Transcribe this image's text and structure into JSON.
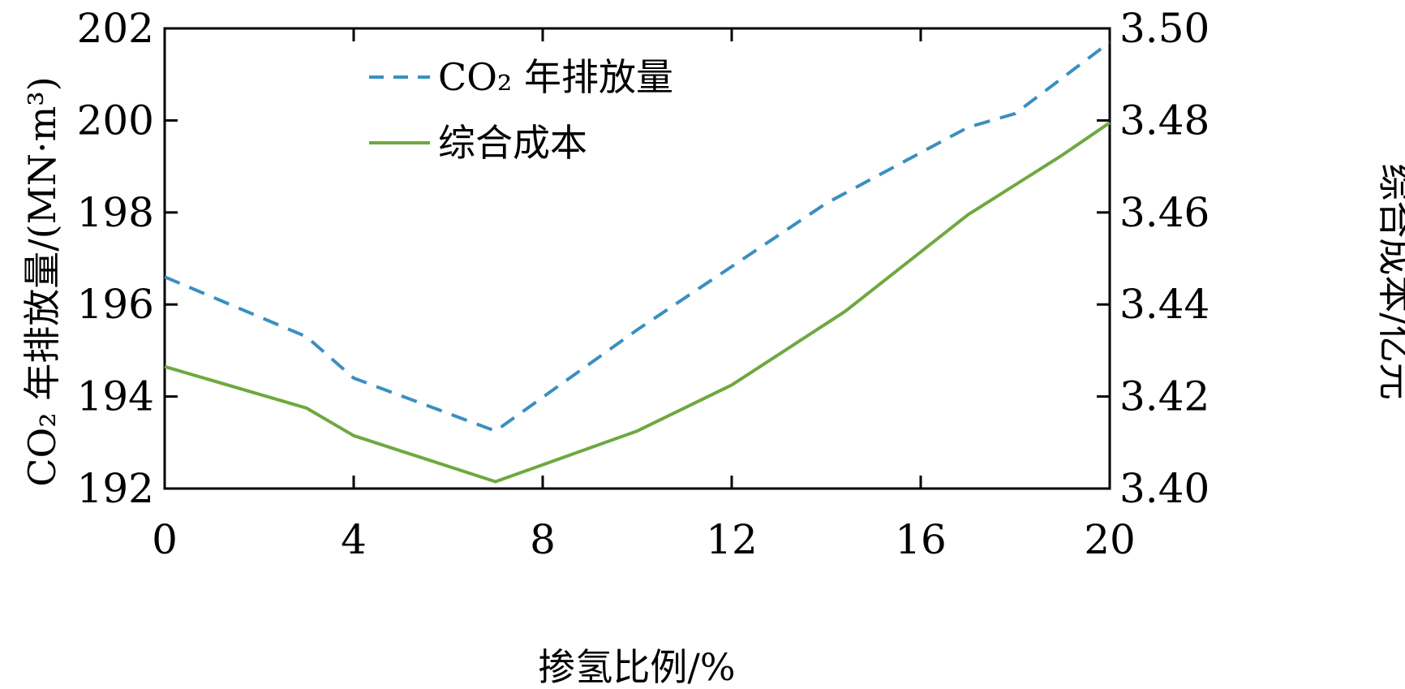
{
  "chart_data": {
    "type": "line",
    "title": "",
    "xlabel": "掺氢比例/%",
    "ylabel_left": "CO₂ 年排放量/(MN·m³)",
    "ylabel_right": "综合成本/亿元",
    "xlim": [
      0,
      20
    ],
    "ylim_left": [
      192,
      202
    ],
    "ylim_right": [
      3.4,
      3.5
    ],
    "x_ticks": [
      "0",
      "4",
      "8",
      "12",
      "16",
      "20"
    ],
    "y_ticks_left": [
      "192",
      "194",
      "196",
      "198",
      "200",
      "202"
    ],
    "y_ticks_right": [
      "3.40",
      "3.42",
      "3.44",
      "3.46",
      "3.48",
      "3.50"
    ],
    "grid": false,
    "legend_position": "top-left",
    "series": [
      {
        "name": "CO₂ 年排放量",
        "axis": "left",
        "style": "dashed",
        "color": "#3a8fc0",
        "x": [
          0,
          3,
          4,
          7,
          10,
          14,
          17,
          18,
          20
        ],
        "y": [
          196.6,
          195.3,
          194.4,
          193.25,
          195.45,
          198.2,
          199.85,
          200.15,
          201.7
        ]
      },
      {
        "name": "综合成本",
        "axis": "right",
        "style": "solid",
        "color": "#6fa83f",
        "x": [
          0,
          3,
          4,
          7,
          10,
          12,
          14.4,
          17,
          19,
          20
        ],
        "y": [
          3.4265,
          3.4175,
          3.4115,
          3.4015,
          3.4125,
          3.4225,
          3.4385,
          3.4595,
          3.4725,
          3.4795
        ]
      }
    ]
  }
}
